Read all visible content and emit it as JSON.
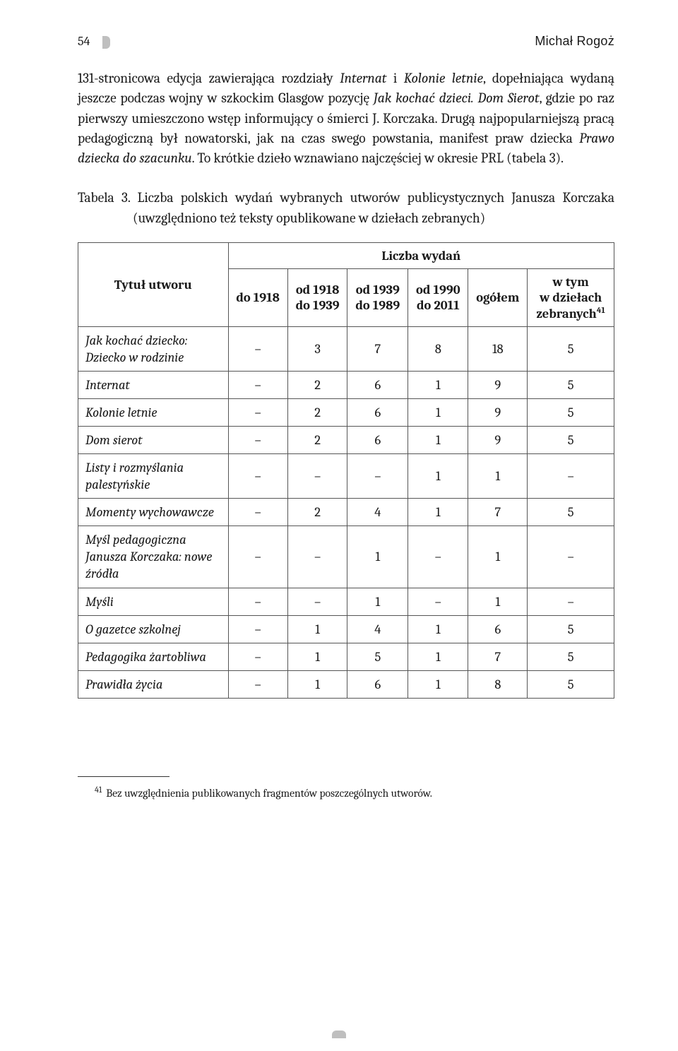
{
  "header": {
    "page_number": "54",
    "author": "Michał Rogoż"
  },
  "paragraph_html": "131-stronicowa edycja zawierająca rozdziały <em>Internat</em> i <em>Kolonie letnie</em>, dopełniająca wydaną jeszcze podczas wojny w szkockim Glasgow pozycję <em>Jak kochać dzieci. Dom Sierot</em>, gdzie po raz pierwszy umieszczono wstęp informujący o śmierci J. Korczaka. Drugą najpopularniejszą pracą pedagogiczną był nowatorski, jak na czas swego powstania, manifest praw dziecka <em>Prawo dziecka do szacunku</em>. To krótkie dzieło wznawiano najczęściej w okresie PRL (tabela 3).",
  "table_caption_html": "Tabela 3. Liczba polskich wydań wybranych utworów publicystycznych Janusza Korczaka (uwzględniono też teksty opublikowane w dziełach zebranych)",
  "table": {
    "spanning_header": "Liczba wydań",
    "col_title": "Tytuł utworu",
    "columns": [
      "do 1918",
      "od 1918 do 1939",
      "od 1939 do 1989",
      "od 1990 do 2011",
      "ogółem"
    ],
    "col_last": "w tym w dziełach zebranych",
    "col_last_sup": "41",
    "rows": [
      {
        "title": "Jak kochać dziecko: Dziecko w rodzinie",
        "cells": [
          "–",
          "3",
          "7",
          "8",
          "18",
          "5"
        ]
      },
      {
        "title": "Internat",
        "cells": [
          "–",
          "2",
          "6",
          "1",
          "9",
          "5"
        ]
      },
      {
        "title": "Kolonie letnie",
        "cells": [
          "–",
          "2",
          "6",
          "1",
          "9",
          "5"
        ]
      },
      {
        "title": "Dom sierot",
        "cells": [
          "–",
          "2",
          "6",
          "1",
          "9",
          "5"
        ]
      },
      {
        "title": "Listy i rozmyślania palestyńskie",
        "cells": [
          "–",
          "–",
          "–",
          "1",
          "1",
          "–"
        ]
      },
      {
        "title": "Momenty wychowawcze",
        "cells": [
          "–",
          "2",
          "4",
          "1",
          "7",
          "5"
        ]
      },
      {
        "title": "Myśl pedagogiczna Janusza Korczaka: nowe źródła",
        "cells": [
          "–",
          "–",
          "1",
          "–",
          "1",
          "–"
        ]
      },
      {
        "title": "Myśli",
        "cells": [
          "–",
          "–",
          "1",
          "–",
          "1",
          "–"
        ]
      },
      {
        "title": "O gazetce szkolnej",
        "cells": [
          "–",
          "1",
          "4",
          "1",
          "6",
          "5"
        ]
      },
      {
        "title": "Pedagogika żartobliwa",
        "cells": [
          "–",
          "1",
          "5",
          "1",
          "7",
          "5"
        ]
      },
      {
        "title": "Prawidła życia",
        "cells": [
          "–",
          "1",
          "6",
          "1",
          "8",
          "5"
        ]
      }
    ]
  },
  "footnote": {
    "num": "41",
    "text": "Bez uwzględnienia publikowanych fragmentów poszczególnych utworów."
  },
  "style": {
    "text_color": "#1a1a1a",
    "background": "#ffffff",
    "border_color": "#555555",
    "body_fontsize_pt": 15,
    "table_fontsize_pt": 14,
    "footnote_fontsize_pt": 12
  }
}
